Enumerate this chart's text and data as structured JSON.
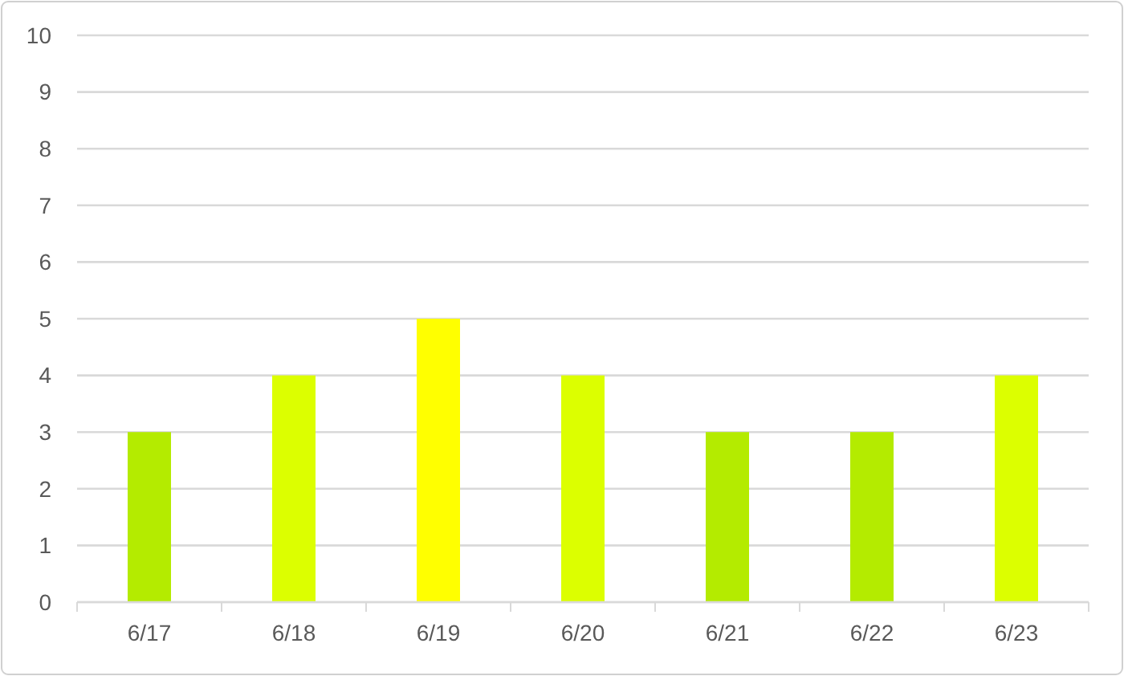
{
  "chart_data": {
    "type": "bar",
    "categories": [
      "6/17",
      "6/18",
      "6/19",
      "6/20",
      "6/21",
      "6/22",
      "6/23"
    ],
    "values": [
      3,
      4,
      5,
      4,
      3,
      3,
      4
    ],
    "colors": [
      "#b4eb00",
      "#dcff00",
      "#ffff00",
      "#dcff00",
      "#b4eb00",
      "#b4eb00",
      "#dcff00"
    ],
    "ylim": [
      0,
      10
    ],
    "yticks": [
      0,
      1,
      2,
      3,
      4,
      5,
      6,
      7,
      8,
      9,
      10
    ],
    "grid": "y"
  }
}
